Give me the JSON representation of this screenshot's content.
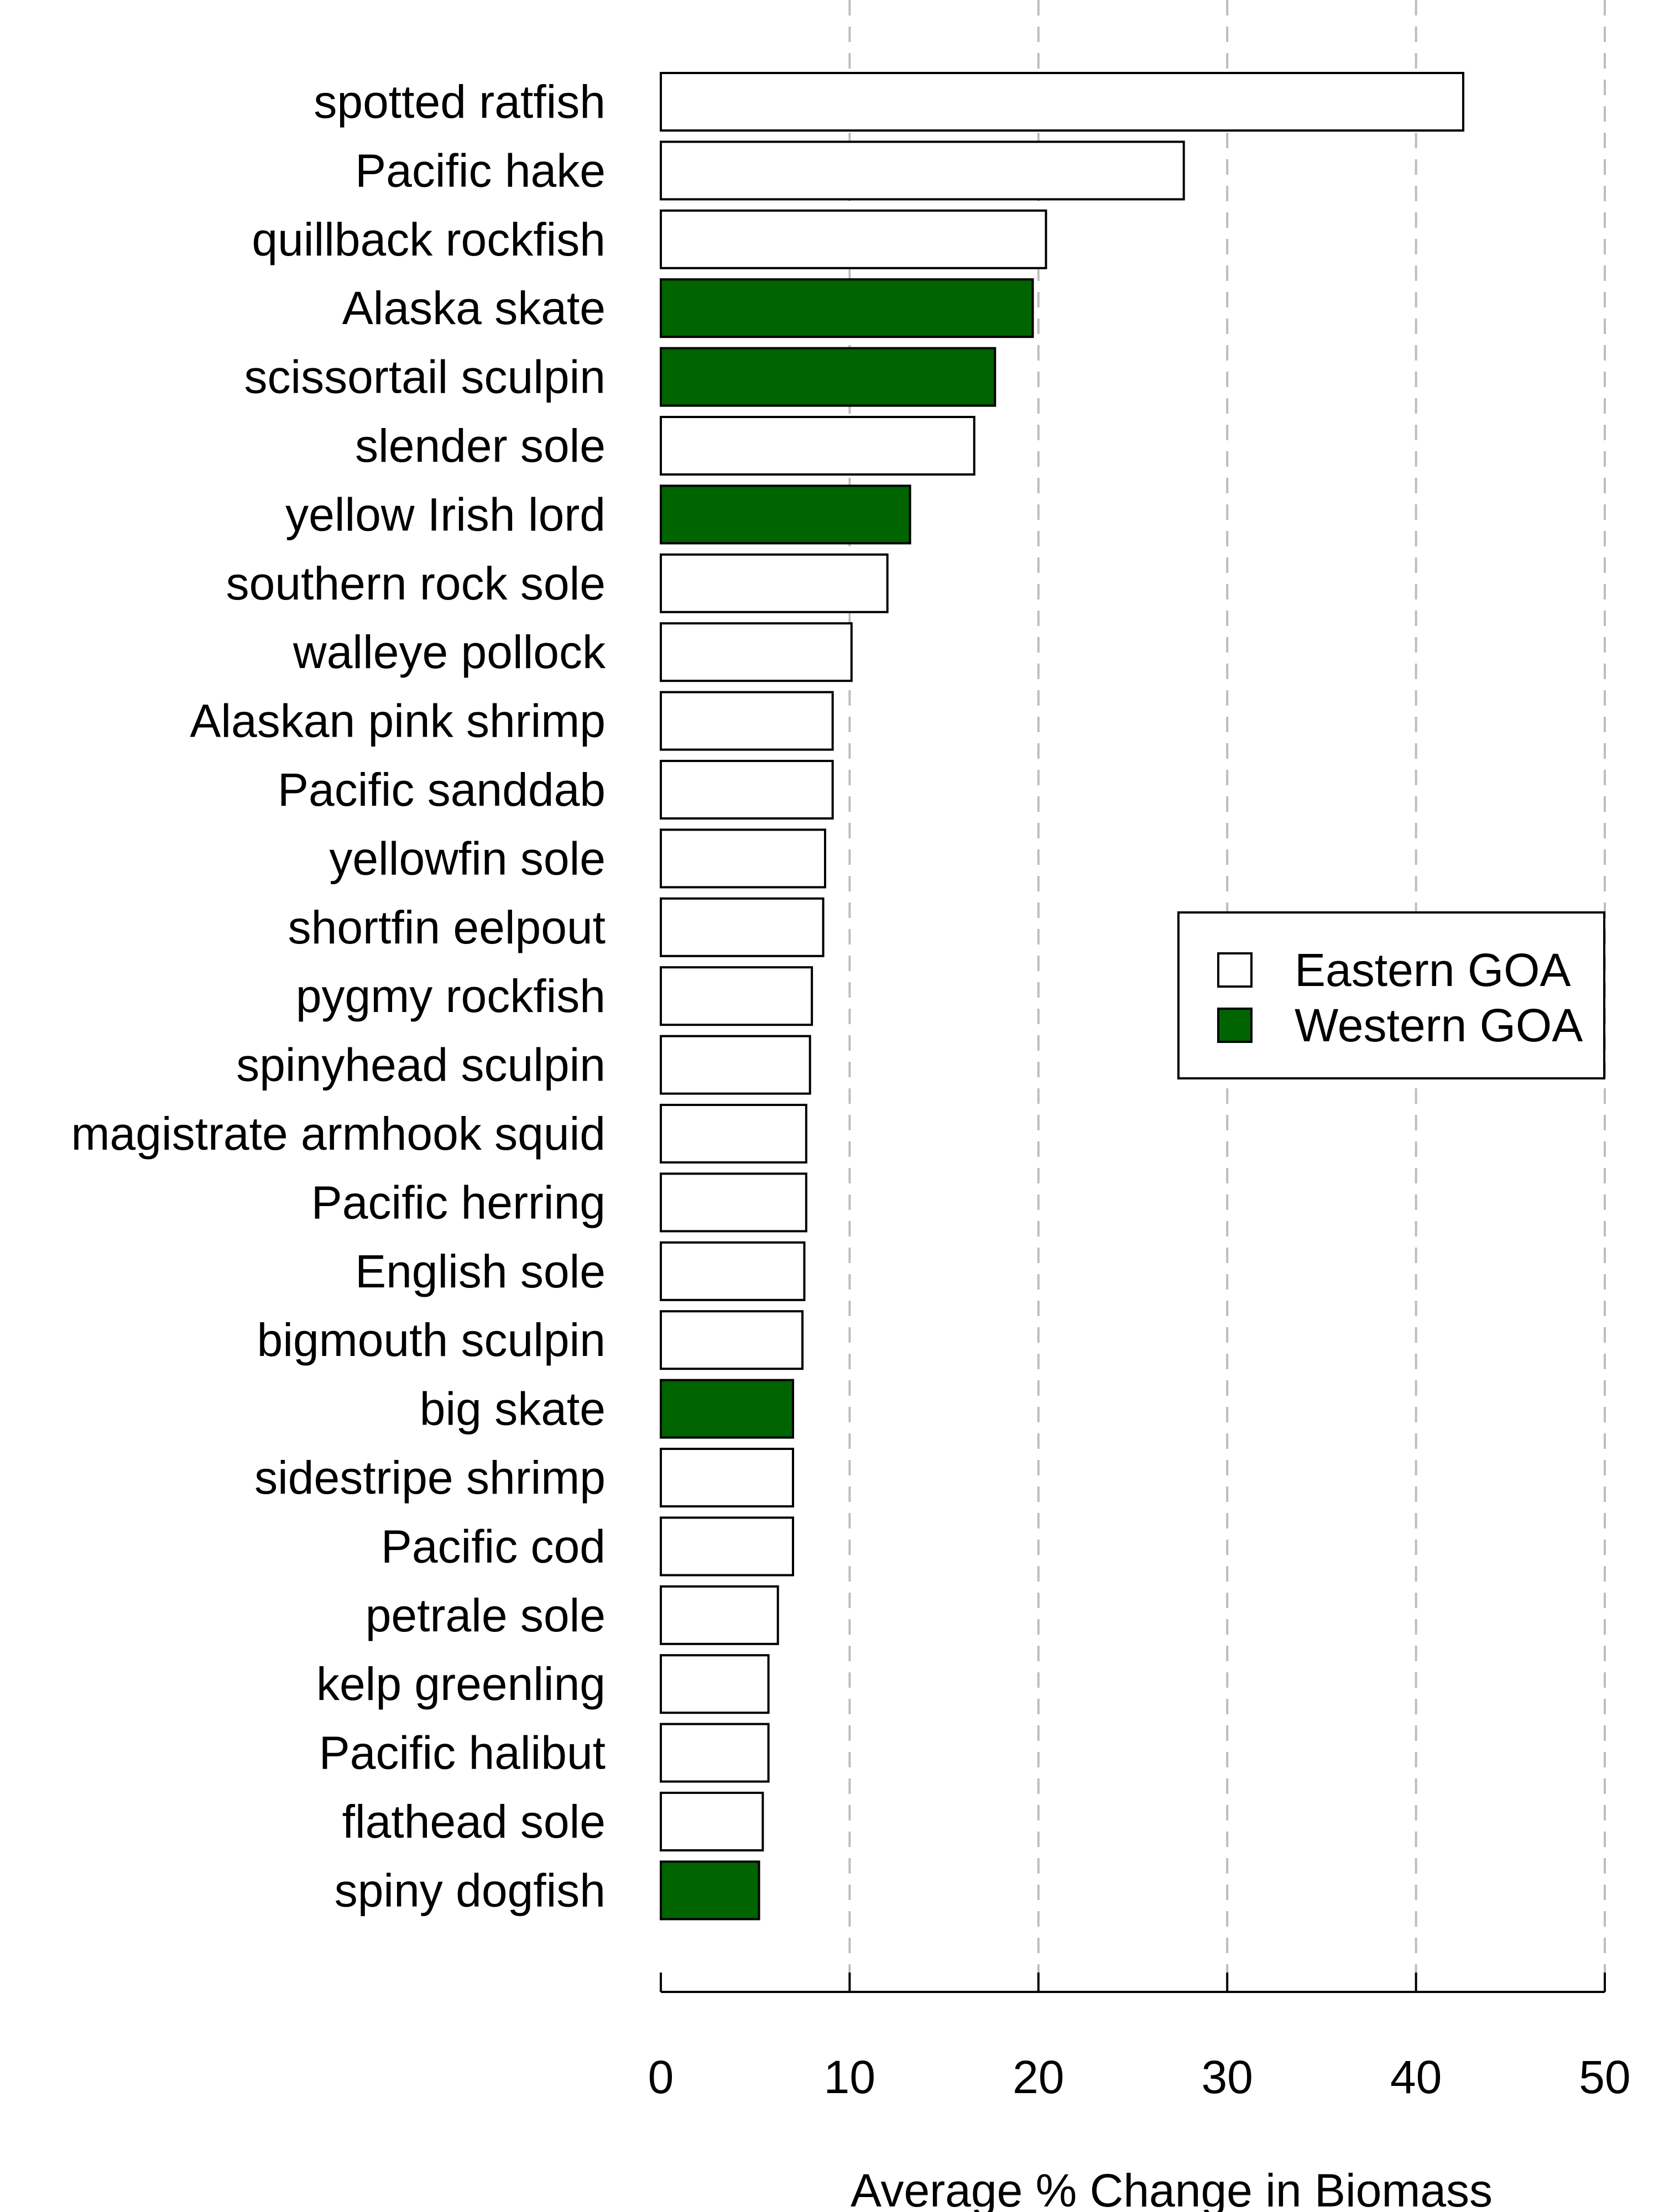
{
  "chart_data": {
    "type": "bar",
    "orientation": "horizontal",
    "xlabel": "Average % Change in Biomass",
    "xlim": [
      0,
      50
    ],
    "xticks": [
      0,
      10,
      20,
      30,
      40,
      50
    ],
    "grid": "vertical dashed",
    "legend_position": "right-middle",
    "categories": [
      "spotted ratfish",
      "Pacific hake",
      "quillback rockfish",
      "Alaska skate",
      "scissortail sculpin",
      "slender sole",
      "yellow Irish lord",
      "southern rock sole",
      "walleye pollock",
      "Alaskan pink shrimp",
      "Pacific sanddab",
      "yellowfin sole",
      "shortfin eelpout",
      "pygmy rockfish",
      "spinyhead sculpin",
      "magistrate armhook squid",
      "Pacific herring",
      "English sole",
      "bigmouth sculpin",
      "big skate",
      "sidestripe shrimp",
      "Pacific cod",
      "petrale sole",
      "kelp greenling",
      "Pacific halibut",
      "flathead sole",
      "spiny dogfish"
    ],
    "values": [
      42.5,
      27.7,
      20.4,
      19.7,
      17.7,
      16.6,
      13.2,
      12.0,
      10.1,
      9.1,
      9.1,
      8.7,
      8.6,
      8.0,
      7.9,
      7.7,
      7.7,
      7.6,
      7.5,
      7.0,
      7.0,
      7.0,
      6.2,
      5.7,
      5.7,
      5.4,
      5.2
    ],
    "regions": [
      "Eastern GOA",
      "Eastern GOA",
      "Eastern GOA",
      "Western GOA",
      "Western GOA",
      "Eastern GOA",
      "Western GOA",
      "Eastern GOA",
      "Eastern GOA",
      "Eastern GOA",
      "Eastern GOA",
      "Eastern GOA",
      "Eastern GOA",
      "Eastern GOA",
      "Eastern GOA",
      "Eastern GOA",
      "Eastern GOA",
      "Eastern GOA",
      "Eastern GOA",
      "Western GOA",
      "Eastern GOA",
      "Eastern GOA",
      "Eastern GOA",
      "Eastern GOA",
      "Eastern GOA",
      "Eastern GOA",
      "Western GOA"
    ],
    "legend": [
      {
        "name": "Eastern GOA",
        "color": "#ffffff"
      },
      {
        "name": "Western GOA",
        "color": "#006400"
      }
    ],
    "colors": {
      "eastern": "#ffffff",
      "western": "#006400",
      "outline": "#000000",
      "grid": "#bdbdbd"
    }
  }
}
